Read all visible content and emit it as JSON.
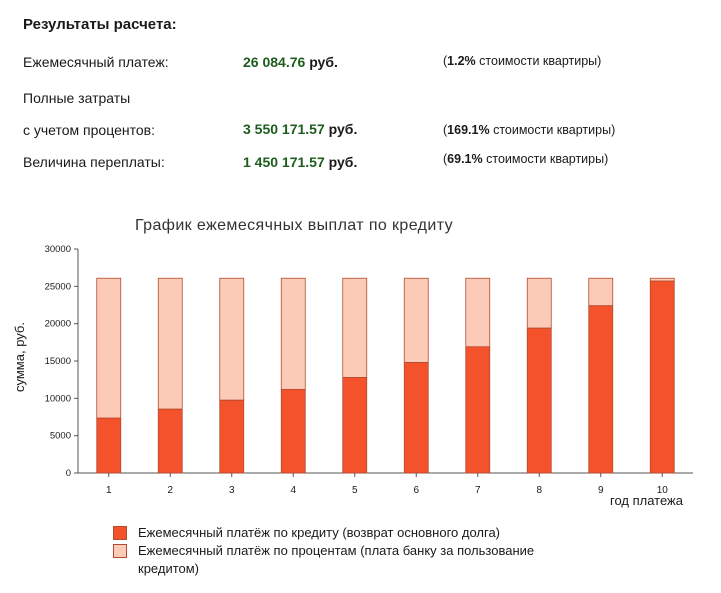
{
  "results": {
    "title": "Результаты расчета:",
    "rows": [
      {
        "label": "Ежемесячный платеж:",
        "value": "26 084.76",
        "unit": "руб.",
        "note_value": "1.2%",
        "note_text": "стоимости квартиры"
      },
      {
        "label": "с учетом процентов:",
        "value": "3 550 171.57",
        "unit": "руб.",
        "note_value": "169.1%",
        "note_text": "стоимости квартиры"
      },
      {
        "label": "Величина переплаты:",
        "value": "1 450 171.57",
        "unit": "руб.",
        "note_value": "69.1%",
        "note_text": "стоимости квартиры"
      }
    ],
    "full_cost_label": "Полные затраты"
  },
  "colors": {
    "principal": "#f4522b",
    "interest": "#fccbb8",
    "bar_border": "#b24a30",
    "axis": "#555555",
    "value_green": "#1e5c1e"
  },
  "chart_data": {
    "type": "bar",
    "stacked": true,
    "title": "График ежемесячных выплат по кредиту",
    "xlabel": "год платежа",
    "ylabel": "сумма, руб.",
    "categories": [
      "1",
      "2",
      "3",
      "4",
      "5",
      "6",
      "7",
      "8",
      "9",
      "10"
    ],
    "ylim": [
      0,
      30000
    ],
    "yticks": [
      0,
      5000,
      10000,
      15000,
      20000,
      25000,
      30000
    ],
    "grid": false,
    "legend_position": "bottom",
    "series": [
      {
        "name": "Ежемесячный платёж по кредиту (возврат основного долга)",
        "values": [
          7350,
          8550,
          9750,
          11200,
          12800,
          14800,
          16900,
          19400,
          22400,
          25700
        ]
      },
      {
        "name": "Ежемесячный платёж по процентам (плата банку за пользование кредитом)",
        "values": [
          18735,
          17535,
          16335,
          14885,
          13285,
          11285,
          9185,
          6685,
          3685,
          385
        ]
      }
    ]
  }
}
